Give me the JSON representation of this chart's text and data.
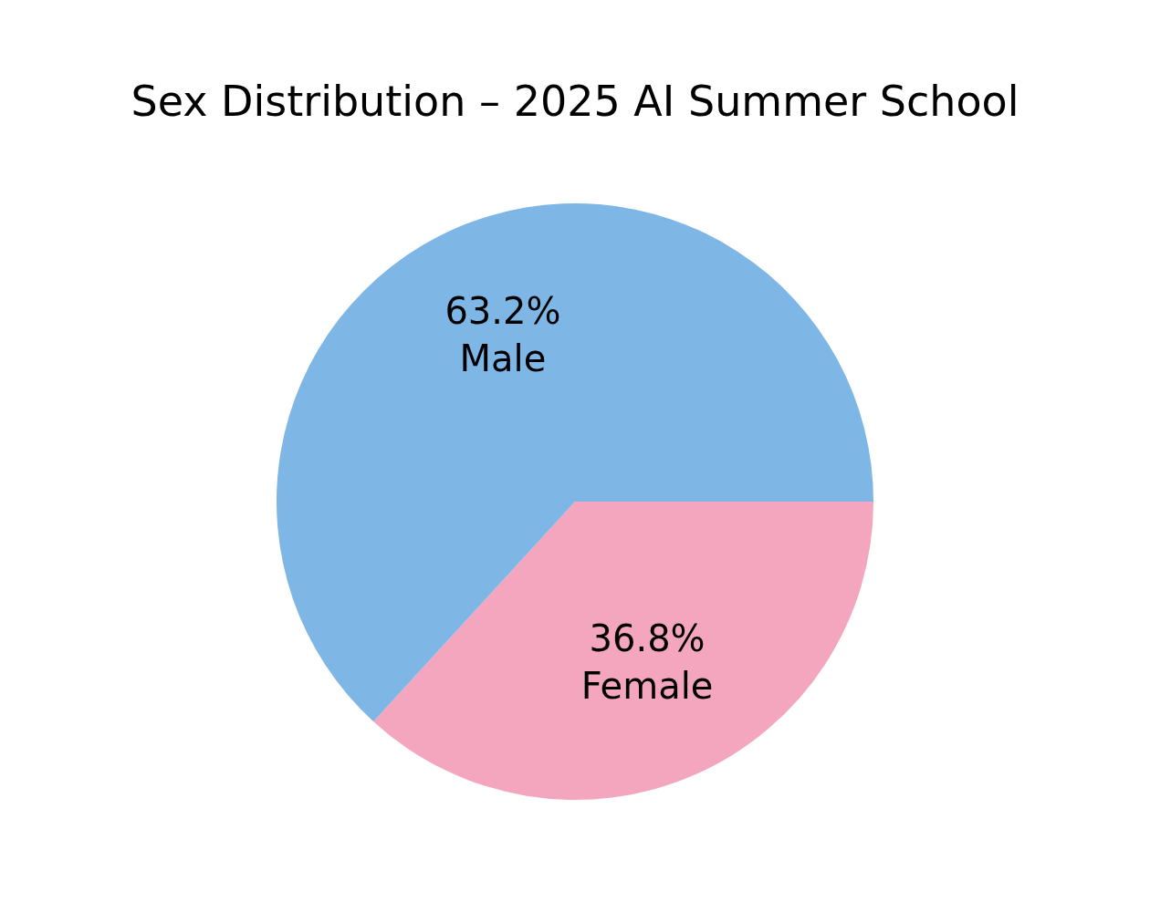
{
  "chart_data": {
    "type": "pie",
    "title": "Sex Distribution – 2025 AI Summer School",
    "categories": [
      "Male",
      "Female"
    ],
    "values": [
      63.2,
      36.8
    ],
    "colors": [
      "#7eb6e6",
      "#f4a6bf"
    ],
    "value_labels": [
      "63.2%",
      "36.8%"
    ]
  }
}
